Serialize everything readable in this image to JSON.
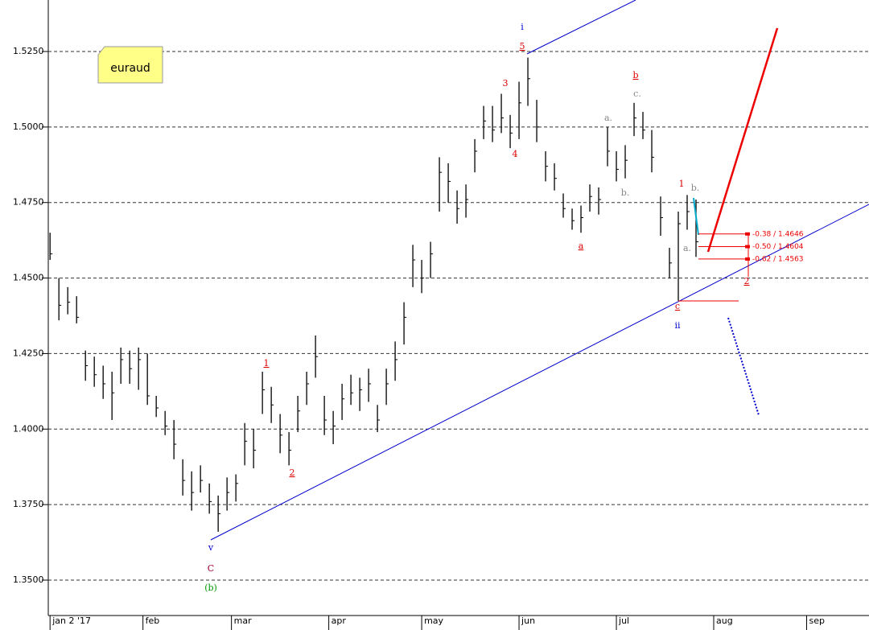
{
  "chart_data": {
    "type": "ohlc",
    "title": "euraud",
    "ylim": [
      1.33828,
      1.54205
    ],
    "yticks": [
      {
        "value": 1.35,
        "label": "1.3500"
      },
      {
        "value": 1.375,
        "label": "1.3750"
      },
      {
        "value": 1.4,
        "label": "1.4000"
      },
      {
        "value": 1.425,
        "label": "1.4250"
      },
      {
        "value": 1.45,
        "label": "1.4500"
      },
      {
        "value": 1.475,
        "label": "1.4750"
      },
      {
        "value": 1.5,
        "label": "1.5000"
      },
      {
        "value": 1.525,
        "label": "1.5250"
      }
    ],
    "xlim": [
      -0.4,
      185.1
    ],
    "xticks": [
      {
        "value": 0,
        "label": "jan 2 '17"
      },
      {
        "value": 21,
        "label": "feb"
      },
      {
        "value": 41,
        "label": "mar"
      },
      {
        "value": 63,
        "label": "apr"
      },
      {
        "value": 84,
        "label": "may"
      },
      {
        "value": 106,
        "label": "jun"
      },
      {
        "value": 128,
        "label": "jul"
      },
      {
        "value": 150,
        "label": "aug"
      },
      {
        "value": 171,
        "label": "sep"
      }
    ],
    "grid": true,
    "color": "#000000",
    "bars": {
      "x": [
        0,
        2,
        4,
        6,
        8,
        10,
        12,
        14,
        16,
        18,
        20,
        22,
        24,
        26,
        28,
        30,
        32,
        34,
        36,
        38,
        40,
        42,
        44,
        46,
        48,
        50,
        52,
        54,
        56,
        58,
        60,
        62,
        64,
        66,
        68,
        70,
        72,
        74,
        76,
        78,
        80,
        82,
        84,
        86,
        88,
        90,
        92,
        94,
        96,
        98,
        100,
        102,
        104,
        106,
        108,
        110,
        112,
        114,
        116,
        118,
        120,
        122,
        124,
        126,
        128,
        130,
        132,
        134,
        136,
        138,
        140,
        142,
        144,
        146
      ],
      "high": [
        1.465,
        1.45,
        1.447,
        1.444,
        1.426,
        1.424,
        1.421,
        1.419,
        1.427,
        1.426,
        1.427,
        1.425,
        1.411,
        1.406,
        1.403,
        1.39,
        1.386,
        1.388,
        1.382,
        1.378,
        1.384,
        1.385,
        1.402,
        1.4,
        1.419,
        1.414,
        1.405,
        1.399,
        1.411,
        1.419,
        1.431,
        1.411,
        1.406,
        1.415,
        1.418,
        1.417,
        1.42,
        1.408,
        1.42,
        1.429,
        1.442,
        1.461,
        1.456,
        1.462,
        1.49,
        1.488,
        1.479,
        1.481,
        1.496,
        1.507,
        1.507,
        1.511,
        1.504,
        1.515,
        1.523,
        1.509,
        1.492,
        1.488,
        1.478,
        1.473,
        1.474,
        1.481,
        1.48,
        1.5,
        1.492,
        1.494,
        1.508,
        1.505,
        1.499,
        1.477,
        1.46,
        1.472,
        1.4775,
        1.476
      ],
      "low": [
        1.456,
        1.436,
        1.438,
        1.435,
        1.416,
        1.414,
        1.41,
        1.403,
        1.415,
        1.415,
        1.413,
        1.408,
        1.404,
        1.398,
        1.39,
        1.378,
        1.373,
        1.379,
        1.372,
        1.366,
        1.373,
        1.376,
        1.388,
        1.387,
        1.405,
        1.402,
        1.392,
        1.388,
        1.399,
        1.408,
        1.417,
        1.398,
        1.395,
        1.403,
        1.408,
        1.406,
        1.409,
        1.399,
        1.408,
        1.416,
        1.428,
        1.447,
        1.445,
        1.45,
        1.472,
        1.475,
        1.468,
        1.47,
        1.485,
        1.496,
        1.495,
        1.498,
        1.493,
        1.496,
        1.507,
        1.495,
        1.482,
        1.479,
        1.47,
        1.466,
        1.465,
        1.472,
        1.471,
        1.487,
        1.482,
        1.483,
        1.497,
        1.496,
        1.485,
        1.464,
        1.45,
        1.4425,
        1.466,
        1.457
      ],
      "close": [
        1.458,
        1.441,
        1.442,
        1.437,
        1.421,
        1.418,
        1.415,
        1.412,
        1.423,
        1.42,
        1.423,
        1.411,
        1.407,
        1.401,
        1.395,
        1.383,
        1.379,
        1.383,
        1.376,
        1.372,
        1.379,
        1.382,
        1.396,
        1.393,
        1.413,
        1.408,
        1.398,
        1.393,
        1.406,
        1.415,
        1.424,
        1.403,
        1.401,
        1.41,
        1.412,
        1.413,
        1.415,
        1.403,
        1.415,
        1.423,
        1.437,
        1.456,
        1.45,
        1.458,
        1.485,
        1.482,
        1.473,
        1.476,
        1.492,
        1.502,
        1.499,
        1.503,
        1.498,
        1.508,
        1.516,
        1.5,
        1.487,
        1.483,
        1.473,
        1.469,
        1.47,
        1.477,
        1.476,
        1.492,
        1.486,
        1.489,
        1.503,
        1.499,
        1.49,
        1.47,
        1.455,
        1.468,
        1.472,
        1.462
      ]
    },
    "fib_levels": [
      {
        "value": 1.4646,
        "label": "-0.38 / 1.4646"
      },
      {
        "value": 1.4604,
        "label": "-0.50 / 1.4604"
      },
      {
        "value": 1.4563,
        "label": "-0.62 / 1.4563"
      }
    ],
    "annotations": [
      {
        "text": "i",
        "color": "#0000cc"
      },
      {
        "text": "5",
        "color": "#dd0000"
      },
      {
        "text": "3",
        "color": "#dd0000"
      },
      {
        "text": "4",
        "color": "#dd0000"
      },
      {
        "text": "b",
        "color": "#dd0000"
      },
      {
        "text": "c.",
        "color": "#888888"
      },
      {
        "text": "a.",
        "color": "#888888"
      },
      {
        "text": "b.",
        "color": "#888888"
      },
      {
        "text": "a",
        "color": "#dd0000"
      },
      {
        "text": "1",
        "color": "#dd0000"
      },
      {
        "text": "b.",
        "color": "#888888"
      },
      {
        "text": "a.",
        "color": "#888888"
      },
      {
        "text": "c",
        "color": "#dd0000"
      },
      {
        "text": "ii",
        "color": "#0000cc"
      },
      {
        "text": "2",
        "color": "#dd0000"
      },
      {
        "text": "1",
        "color": "#dd0000"
      },
      {
        "text": "2",
        "color": "#dd0000"
      },
      {
        "text": "v",
        "color": "#0000cc"
      },
      {
        "text": "C",
        "color": "#990033"
      },
      {
        "text": "(b)",
        "color": "#009900"
      }
    ]
  }
}
